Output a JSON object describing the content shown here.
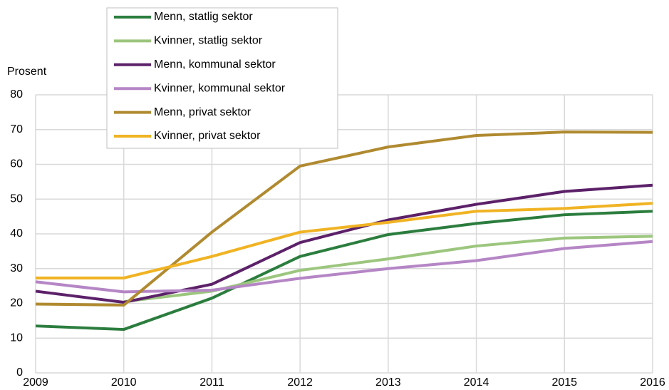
{
  "chart_data": {
    "type": "line",
    "y_label": "Prosent",
    "x": [
      2009,
      2010,
      2011,
      2012,
      2013,
      2014,
      2015,
      2016
    ],
    "xlim": [
      2009,
      2016
    ],
    "xticks": [
      2009,
      2010,
      2011,
      2012,
      2013,
      2014,
      2015,
      2016
    ],
    "ylim": [
      0,
      80
    ],
    "yticks": [
      0,
      10,
      20,
      30,
      40,
      50,
      60,
      70,
      80
    ],
    "grid": true,
    "series": [
      {
        "name": "Menn, statlig sektor",
        "color": "#2b7d3e",
        "values": [
          13.5,
          12.5,
          21.5,
          33.5,
          39.8,
          43,
          45.5,
          46.5
        ]
      },
      {
        "name": "Kvinner, statlig sektor",
        "color": "#9cc67e",
        "values": [
          null,
          20.5,
          23.5,
          29.5,
          32.8,
          36.5,
          38.8,
          39.3
        ]
      },
      {
        "name": "Menn, kommunal sektor",
        "color": "#5c2169",
        "values": [
          23.5,
          20.3,
          25.5,
          37.5,
          44,
          48.5,
          52.2,
          54
        ]
      },
      {
        "name": "Kvinner, kommunal sektor",
        "color": "#b586c5",
        "values": [
          26.2,
          23.3,
          23.8,
          27.2,
          30,
          32.3,
          35.8,
          37.8
        ]
      },
      {
        "name": "Menn, privat sektor",
        "color": "#b08a30",
        "values": [
          19.8,
          19.5,
          40.5,
          59.5,
          65,
          68.3,
          69.3,
          69.2
        ]
      },
      {
        "name": "Kvinner, privat sektor",
        "color": "#f0b323",
        "values": [
          27.3,
          27.3,
          33.5,
          40.5,
          43.3,
          46.5,
          47.3,
          48.8
        ]
      }
    ]
  }
}
